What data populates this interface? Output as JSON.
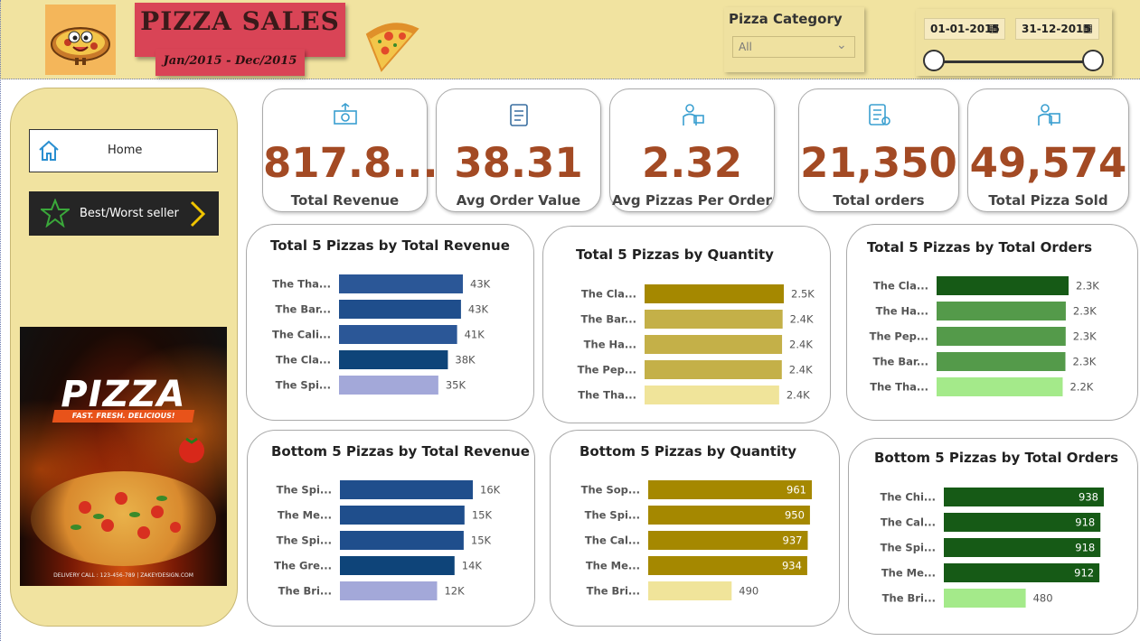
{
  "header": {
    "title": "PIZZA SALES",
    "date_range": "Jan/2015 -  Dec/2015",
    "category_slicer": {
      "title": "Pizza Category",
      "value": "All"
    },
    "date_slicer": {
      "start": "01-01-2015",
      "end": "31-12-2015",
      "start_fraction": 0,
      "end_fraction": 1
    }
  },
  "sidebar": {
    "home_label": "Home",
    "best_worst_label": "Best/Worst seller",
    "poster": {
      "title": "PIZZA",
      "tagline": "FAST. FRESH. DELICIOUS!",
      "footer": "DELIVERY CALL : 123-456-789 | ZAKEYDESIGN.COM"
    }
  },
  "kpis": [
    {
      "value": "817.8...",
      "label": "Total Revenue",
      "icon": "money-icon"
    },
    {
      "value": "38.31",
      "label": "Avg Order Value",
      "icon": "clipboard-icon"
    },
    {
      "value": "2.32",
      "label": "Avg Pizzas Per Order",
      "icon": "delivery-icon"
    },
    {
      "value": "21,350",
      "label": "Total orders",
      "icon": "order-list-icon"
    },
    {
      "value": "49,574",
      "label": "Total Pizza Sold",
      "icon": "delivery-person-icon"
    }
  ],
  "colors": {
    "header_bg": "#f1e3a0",
    "title_red": "#d94456",
    "kpi_value": "#a34a24"
  },
  "chart_data": [
    {
      "type": "bar",
      "title": "Total 5 Pizzas by Total Revenue",
      "categories": [
        "The Tha...",
        "The Bar...",
        "The Cali...",
        "The Cla...",
        "The Spi..."
      ],
      "values": [
        43434,
        42768,
        41410,
        38180,
        34831
      ],
      "labels": [
        "43K",
        "43K",
        "41K",
        "38K",
        "35K"
      ],
      "colors": [
        "#2b5797",
        "#1f4e8c",
        "#2b5797",
        "#0e4479",
        "#a3a8d9"
      ],
      "xlim": [
        0,
        43434
      ]
    },
    {
      "type": "bar",
      "title": "Total 5 Pizzas by Quantity",
      "categories": [
        "The Cla...",
        "The Bar...",
        "The Ha...",
        "The Pep...",
        "The Tha..."
      ],
      "values": [
        2453,
        2432,
        2422,
        2418,
        2371
      ],
      "labels": [
        "2.5K",
        "2.4K",
        "2.4K",
        "2.4K",
        "2.4K"
      ],
      "colors": [
        "#a58800",
        "#c4b048",
        "#c4b048",
        "#c4b048",
        "#f0e49a"
      ],
      "xlim": [
        0,
        2453
      ]
    },
    {
      "type": "bar",
      "title": "Total 5 Pizzas by Total Orders",
      "categories": [
        "The Cla...",
        "The Ha...",
        "The Pep...",
        "The Bar...",
        "The Tha..."
      ],
      "values": [
        2329,
        2280,
        2278,
        2273,
        2225
      ],
      "labels": [
        "2.3K",
        "2.3K",
        "2.3K",
        "2.3K",
        "2.2K"
      ],
      "colors": [
        "#165a16",
        "#549a4a",
        "#549a4a",
        "#549a4a",
        "#a4ea8a"
      ],
      "xlim": [
        0,
        2329
      ]
    },
    {
      "type": "bar",
      "title": "Bottom 5 Pizzas by Total Revenue",
      "categories": [
        "The Spi...",
        "The Me...",
        "The Spi...",
        "The Gre...",
        "The Bri..."
      ],
      "values": [
        16000,
        15000,
        14900,
        13800,
        11700
      ],
      "labels": [
        "16K",
        "15K",
        "15K",
        "14K",
        "12K"
      ],
      "colors": [
        "#1f4e8c",
        "#1f4e8c",
        "#1f4e8c",
        "#0e4479",
        "#a3a8d9"
      ],
      "xlim": [
        0,
        16000
      ]
    },
    {
      "type": "bar",
      "title": "Bottom 5 Pizzas by Quantity",
      "categories": [
        "The Sop...",
        "The Spi...",
        "The Cal...",
        "The Me...",
        "The Bri..."
      ],
      "values": [
        961,
        950,
        937,
        934,
        490
      ],
      "labels": [
        "961",
        "950",
        "937",
        "934",
        "490"
      ],
      "colors": [
        "#a58800",
        "#a58800",
        "#a58800",
        "#a58800",
        "#f0e49a"
      ],
      "labels_inside": true,
      "xlim": [
        0,
        961
      ]
    },
    {
      "type": "bar",
      "title": "Bottom 5 Pizzas by Total Orders",
      "categories": [
        "The Chi...",
        "The Cal...",
        "The Spi...",
        "The Me...",
        "The Bri..."
      ],
      "values": [
        938,
        918,
        918,
        912,
        480
      ],
      "labels": [
        "938",
        "918",
        "918",
        "912",
        "480"
      ],
      "colors": [
        "#165a16",
        "#165a16",
        "#165a16",
        "#165a16",
        "#a4ea8a"
      ],
      "labels_inside": true,
      "xlim": [
        0,
        938
      ]
    }
  ]
}
